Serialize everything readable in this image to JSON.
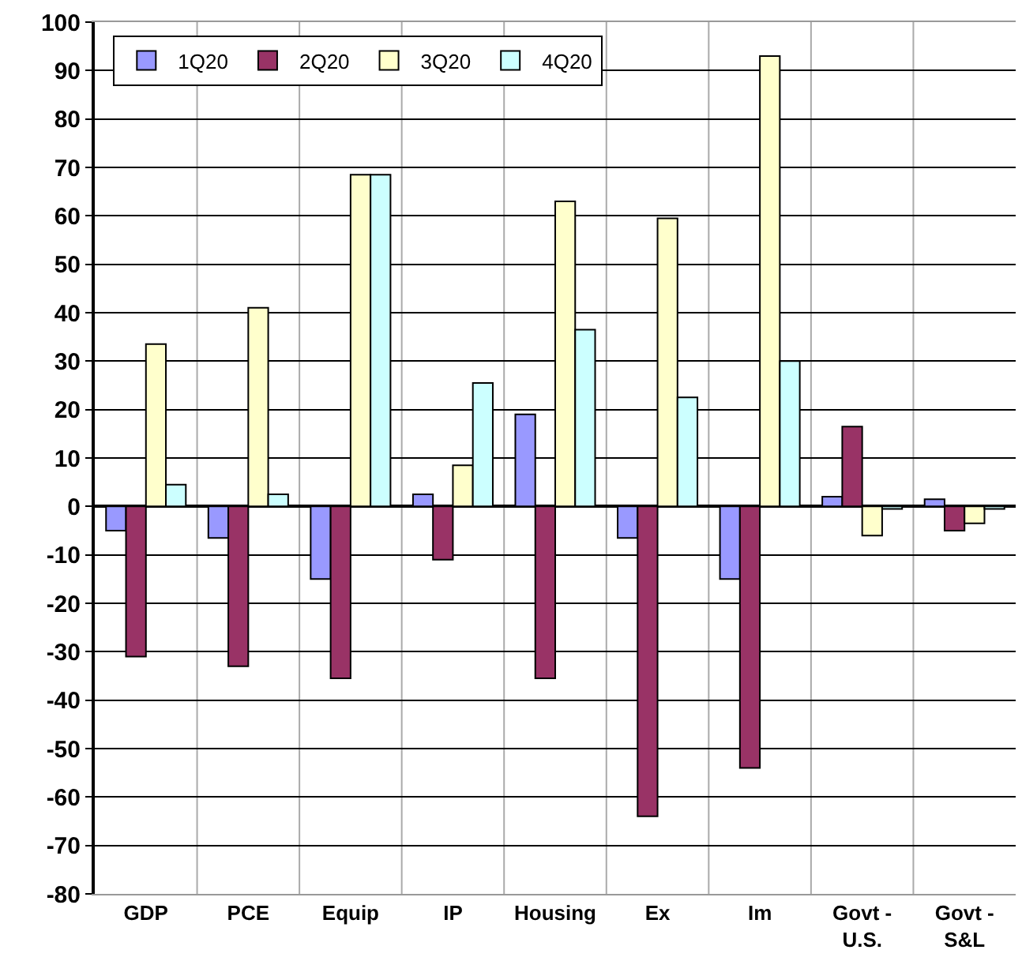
{
  "chart_data": {
    "type": "bar",
    "categories": [
      "GDP",
      "PCE",
      "Equip",
      "IP",
      "Housing",
      "Ex",
      "Im",
      "Govt -\nU.S.",
      "Govt -\nS&L"
    ],
    "series": [
      {
        "name": "1Q20",
        "color": "#9999ff",
        "values": [
          -5,
          -6.5,
          -15,
          2.5,
          19,
          -6.5,
          -15,
          2,
          1.5
        ]
      },
      {
        "name": "2Q20",
        "color": "#993366",
        "values": [
          -31,
          -33,
          -35.5,
          -11,
          -35.5,
          -64,
          -54,
          16.5,
          -5
        ]
      },
      {
        "name": "3Q20",
        "color": "#ffffcc",
        "values": [
          33.5,
          41,
          68.5,
          8.5,
          63,
          59.5,
          93,
          -6,
          -3.5
        ]
      },
      {
        "name": "4Q20",
        "color": "#ccffff",
        "values": [
          4.5,
          2.5,
          68.5,
          25.5,
          36.5,
          22.5,
          30,
          -0.5,
          -0.5
        ]
      }
    ],
    "ylim": [
      -80,
      100
    ],
    "yticks": [
      -80,
      -70,
      -60,
      -50,
      -40,
      -30,
      -20,
      -10,
      0,
      10,
      20,
      30,
      40,
      50,
      60,
      70,
      80,
      90,
      100
    ],
    "grid": true,
    "legend": "top left"
  }
}
